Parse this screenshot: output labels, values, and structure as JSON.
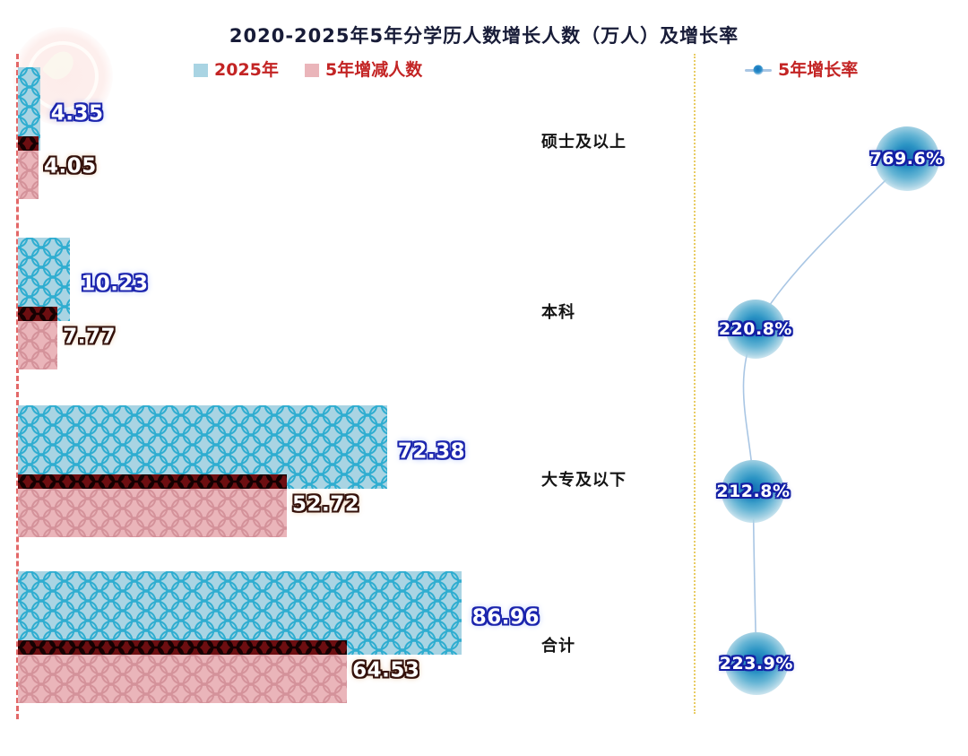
{
  "title": "2020-2025年5年分学历人数增长人数（万人）及增长率",
  "legend": {
    "bar_2025": "2025年",
    "bar_delta": "5年增减人数",
    "line_rate": "5年增长率"
  },
  "colors": {
    "bar_2025_base": "#a9d4e3",
    "bar_2025_pattern": "#2fadd0",
    "bar_delta_base": "#eab5ba",
    "bar_delta_pattern": "#d4929a",
    "bar_delta_edge": "#6d0e11",
    "rate_bubble_core": "#146fb4",
    "rate_line": "#a9c6e4",
    "legend_text": "#c32424",
    "title_text": "#181c38",
    "left_axis_dash": "#e26060",
    "right_axis_dot": "#e6c44a",
    "value_outline_blue": "#1b24ad",
    "value_outline_dark": "#33100a"
  },
  "chart_data": {
    "type": "bar",
    "orientation": "horizontal",
    "title": "2020-2025年5年分学历人数增长人数（万人）及增长率",
    "categories": [
      "硕士及以上",
      "本科",
      "大专及以下",
      "合计"
    ],
    "series": [
      {
        "name": "2025年",
        "type": "bar",
        "unit": "万人",
        "values": [
          4.35,
          10.23,
          72.38,
          86.96
        ],
        "labels": [
          "4.35",
          "10.23",
          "72.38",
          "86.96"
        ]
      },
      {
        "name": "5年增减人数",
        "type": "bar",
        "unit": "万人",
        "values": [
          4.05,
          7.77,
          52.72,
          64.53
        ],
        "labels": [
          "4.05",
          "7.77",
          "52.72",
          "64.53"
        ]
      },
      {
        "name": "5年增长率",
        "type": "scatter-line",
        "unit": "%",
        "values": [
          769.6,
          220.8,
          212.8,
          223.9
        ],
        "labels": [
          "769.6%",
          "220.8%",
          "212.8%",
          "223.9%"
        ]
      }
    ],
    "legend_position": "top",
    "grid": false,
    "bar_value_axis": {
      "min": 0,
      "hidden": true
    },
    "rate_value_axis": {
      "min": 0,
      "hidden": true
    }
  }
}
